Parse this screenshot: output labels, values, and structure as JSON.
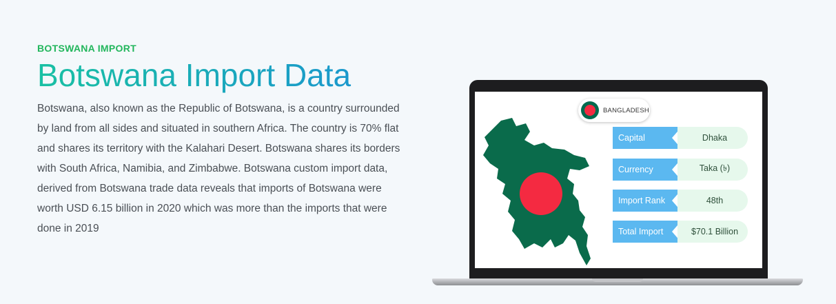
{
  "section": {
    "eyebrow": "BOTSWANA IMPORT",
    "title": "Botswana Import Data",
    "description": "Botswana, also known as the Republic of Botswana, is a country surrounded by land from all sides and situated in southern Africa. The country is 70% flat and shares its territory with the Kalahari Desert. Botswana shares its borders with South Africa, Namibia, and Zimbabwe. Botswana custom import data, derived from Botswana trade data reveals that imports of Botswana were worth USD 6.15 billion in 2020 which was more than the imports that were done in 2019"
  },
  "country_card": {
    "country": "BANGLADESH",
    "rows": [
      {
        "label": "Capital",
        "value": "Dhaka"
      },
      {
        "label": "Currency",
        "value": "Taka (৳)"
      },
      {
        "label": "Import Rank",
        "value": "48th"
      },
      {
        "label": "Total Import",
        "value": "$70.1 Billion"
      }
    ]
  },
  "colors": {
    "eyebrow": "#22b65c",
    "title_gradient_start": "#19c0a3",
    "title_gradient_end": "#1a8fd6",
    "label_bg": "#5bb8f0",
    "value_bg": "#e6f8ec",
    "flag_green": "#006a4e",
    "flag_red": "#f42a41"
  }
}
